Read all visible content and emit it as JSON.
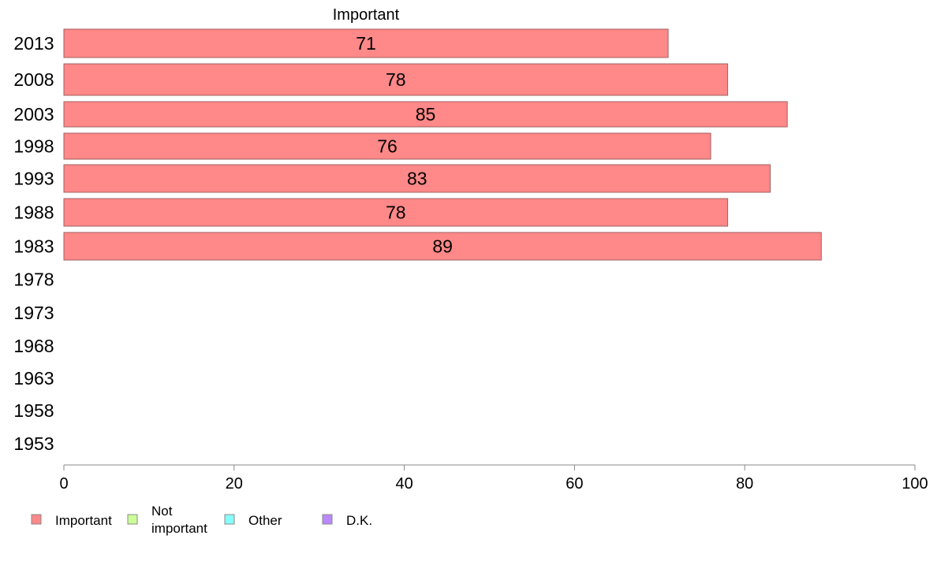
{
  "chart_data": {
    "type": "bar",
    "orientation": "horizontal",
    "title": "Important",
    "categories": [
      "2013",
      "2008",
      "2003",
      "1998",
      "1993",
      "1988",
      "1983",
      "1978",
      "1973",
      "1968",
      "1963",
      "1958",
      "1953"
    ],
    "series": [
      {
        "name": "Important",
        "color": "#ff8888",
        "values": [
          71,
          78,
          85,
          76,
          83,
          78,
          89,
          null,
          null,
          null,
          null,
          null,
          null
        ]
      }
    ],
    "xlim": [
      0,
      100
    ],
    "x_ticks": [
      "0",
      "20",
      "40",
      "60",
      "80",
      "100"
    ],
    "grid": false,
    "legend": {
      "placement": "bottom-left",
      "items": [
        {
          "label": "Important",
          "color": "#ff8888"
        },
        {
          "label": "Not important",
          "color": "#ccff99"
        },
        {
          "label": "Other",
          "color": "#88ffff"
        },
        {
          "label": "D.K.",
          "color": "#bb88ff"
        }
      ]
    }
  }
}
